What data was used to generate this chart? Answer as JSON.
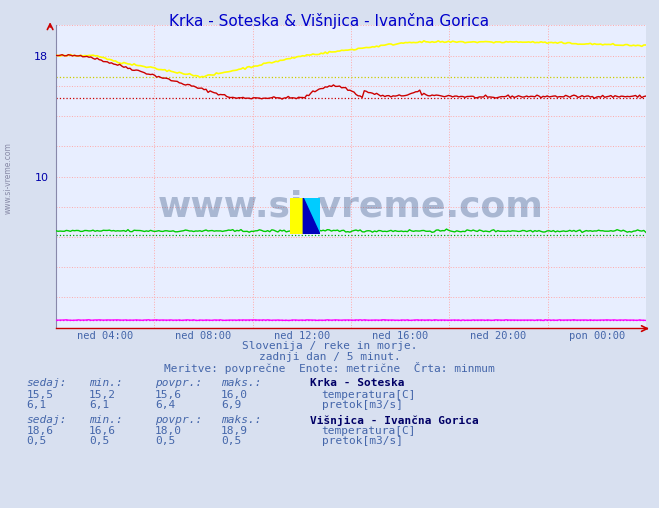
{
  "title": "Krka - Soteska & Višnjica - Ivančna Gorica",
  "title_color": "#0000cc",
  "bg_color": "#d8e0f0",
  "plot_bg_color": "#e8eeff",
  "grid_color_major": "#ffaaaa",
  "grid_color_minor": "#ffcccc",
  "x_labels": [
    "ned 04:00",
    "ned 08:00",
    "ned 12:00",
    "ned 16:00",
    "ned 20:00",
    "pon 00:00"
  ],
  "y_ticks_major": [
    0,
    10,
    18
  ],
  "y_min": 0,
  "y_max": 20,
  "n_points": 288,
  "color_krka_temp": "#cc0000",
  "color_krka_pretok": "#00cc00",
  "color_visnjica_temp": "#ffff00",
  "color_visnjica_pretok": "#ff00ff",
  "krka_temp_min": 15.2,
  "krka_pretok_min": 6.1,
  "visnjica_temp_min": 16.6,
  "visnjica_pretok_min": 0.5,
  "watermark_text": "www.si-vreme.com",
  "watermark_color": "#1a3a6a",
  "watermark_alpha": 0.3,
  "subtitle1": "Slovenija / reke in morje.",
  "subtitle2": "zadnji dan / 5 minut.",
  "subtitle3": "Meritve: povprečne  Enote: metrične  Črta: minmum",
  "text_color": "#4466aa",
  "legend_color": "#4466aa",
  "krka_header": "Krka - Soteska",
  "visnjica_header": "Višnjica - Ivančna Gorica",
  "krka_cols": [
    "15,5",
    "15,2",
    "15,6",
    "16,0"
  ],
  "krka_pretok_cols": [
    "6,1",
    "6,1",
    "6,4",
    "6,9"
  ],
  "visnjica_cols": [
    "18,6",
    "16,6",
    "18,0",
    "18,9"
  ],
  "visnjica_pretok_cols": [
    "0,5",
    "0,5",
    "0,5",
    "0,5"
  ],
  "col_headers": [
    "sedaj:",
    "min.:",
    "povpr.:",
    "maks.:"
  ],
  "label_temp": "temperatura[C]",
  "label_pretok": "pretok[m3/s]"
}
